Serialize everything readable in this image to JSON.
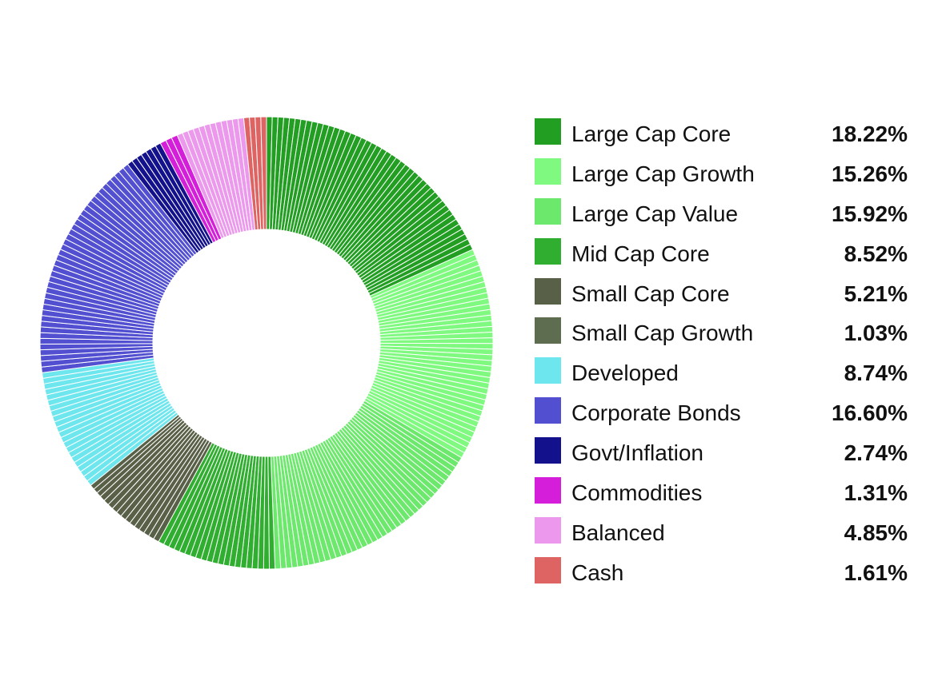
{
  "chart_data": {
    "type": "pie",
    "style": "donut",
    "title": "",
    "legend_position": "right",
    "categories": [
      "Large Cap Core",
      "Large Cap Growth",
      "Large Cap Value",
      "Mid Cap Core",
      "Small Cap Core",
      "Small Cap Growth",
      "Developed",
      "Corporate Bonds",
      "Govt/Inflation",
      "Commodities",
      "Balanced",
      "Cash"
    ],
    "values": [
      18.22,
      15.26,
      15.92,
      8.52,
      5.21,
      1.03,
      8.74,
      16.6,
      2.74,
      1.31,
      4.85,
      1.61
    ],
    "labels": [
      "18.22%",
      "15.26%",
      "15.92%",
      "8.52%",
      "5.21%",
      "1.03%",
      "8.74%",
      "16.60%",
      "2.74%",
      "1.31%",
      "4.85%",
      "1.61%"
    ],
    "colors": [
      "#229e22",
      "#7ff97f",
      "#6ce86c",
      "#2fae2f",
      "#596048",
      "#5e6c4f",
      "#6ee6ee",
      "#5250d0",
      "#13128c",
      "#d41ed9",
      "#ec98ec",
      "#dd6462"
    ],
    "slice_colors": [
      "#229e22",
      "#7ff97f",
      "#6ce86c",
      "#2fae2f",
      "#596048",
      "#596048",
      "#6ee6ee",
      "#5250d0",
      "#13128c",
      "#d41ed9",
      "#ec98ec",
      "#dd6462"
    ]
  }
}
